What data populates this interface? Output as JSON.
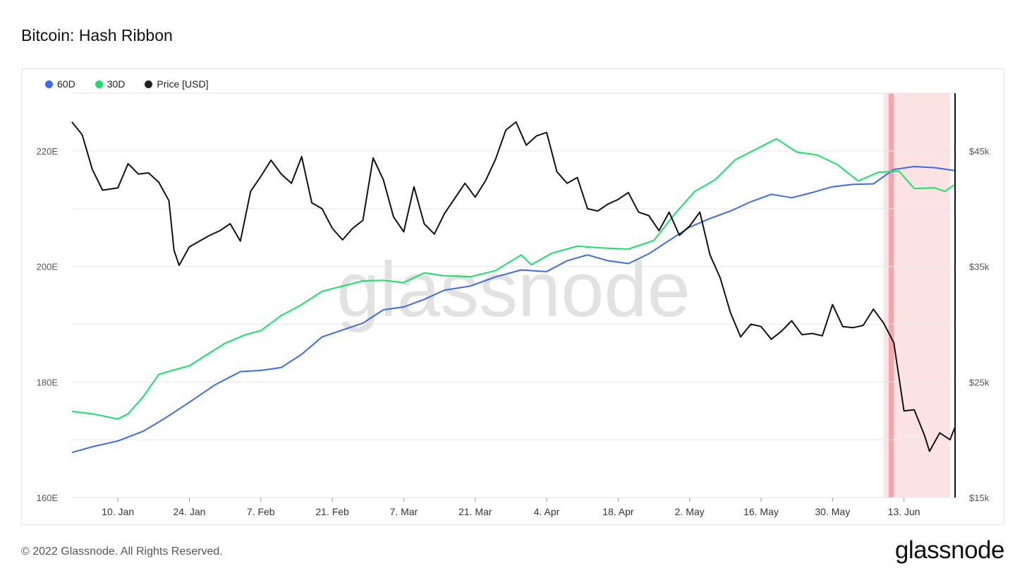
{
  "title": "Bitcoin: Hash Ribbon",
  "footer": {
    "copyright": "© 2022 Glassnode. All Rights Reserved.",
    "logo": "glassnode",
    "watermark": "glassnode"
  },
  "colors": {
    "series_60d": "#3d6ae8",
    "series_30d": "#18e06a",
    "price": "#111111",
    "band_light": "#fbe3e4",
    "band_dark": "#f4a7aa",
    "grid": "#e6e6e6"
  },
  "chart_data": {
    "type": "line",
    "title": "Bitcoin: Hash Ribbon",
    "x_start": "2022-01-01",
    "x_end": "2022-06-23",
    "x_ticks": [
      {
        "date": "2022-01-10",
        "label": "10. Jan"
      },
      {
        "date": "2022-01-24",
        "label": "24. Jan"
      },
      {
        "date": "2022-02-07",
        "label": "7. Feb"
      },
      {
        "date": "2022-02-21",
        "label": "21. Feb"
      },
      {
        "date": "2022-03-07",
        "label": "7. Mar"
      },
      {
        "date": "2022-03-21",
        "label": "21. Mar"
      },
      {
        "date": "2022-04-04",
        "label": "4. Apr"
      },
      {
        "date": "2022-04-18",
        "label": "18. Apr"
      },
      {
        "date": "2022-05-02",
        "label": "2. May"
      },
      {
        "date": "2022-05-16",
        "label": "16. May"
      },
      {
        "date": "2022-05-30",
        "label": "30. May"
      },
      {
        "date": "2022-06-13",
        "label": "13. Jun"
      }
    ],
    "y_left": {
      "min": 160,
      "max": 230,
      "ticks": [
        160,
        180,
        200,
        220
      ],
      "tick_labels": [
        "160E",
        "180E",
        "200E",
        "220E"
      ]
    },
    "y_right": {
      "min": 15000,
      "max": 50000,
      "ticks": [
        15000,
        25000,
        35000,
        45000
      ],
      "tick_labels": [
        "$15k",
        "$25k",
        "$35k",
        "$45k"
      ]
    },
    "grid": true,
    "legend_position": "top-left",
    "series": [
      {
        "name": "60D",
        "axis": "left",
        "points": [
          [
            "2022-01-01",
            167.8
          ],
          [
            "2022-01-05",
            168.8
          ],
          [
            "2022-01-10",
            169.8
          ],
          [
            "2022-01-15",
            171.5
          ],
          [
            "2022-01-19",
            173.6
          ],
          [
            "2022-01-24",
            176.5
          ],
          [
            "2022-01-29",
            179.5
          ],
          [
            "2022-02-03",
            181.8
          ],
          [
            "2022-02-07",
            182.0
          ],
          [
            "2022-02-11",
            182.5
          ],
          [
            "2022-02-15",
            184.8
          ],
          [
            "2022-02-19",
            187.8
          ],
          [
            "2022-02-23",
            189.0
          ],
          [
            "2022-02-27",
            190.2
          ],
          [
            "2022-03-03",
            192.5
          ],
          [
            "2022-03-07",
            193.0
          ],
          [
            "2022-03-11",
            194.3
          ],
          [
            "2022-03-15",
            195.9
          ],
          [
            "2022-03-20",
            196.6
          ],
          [
            "2022-03-25",
            198.2
          ],
          [
            "2022-03-30",
            199.4
          ],
          [
            "2022-04-04",
            199.1
          ],
          [
            "2022-04-08",
            201.0
          ],
          [
            "2022-04-12",
            202.0
          ],
          [
            "2022-04-16",
            201.0
          ],
          [
            "2022-04-20",
            200.5
          ],
          [
            "2022-04-24",
            202.2
          ],
          [
            "2022-04-28",
            204.5
          ],
          [
            "2022-05-02",
            206.8
          ],
          [
            "2022-05-06",
            208.3
          ],
          [
            "2022-05-10",
            209.6
          ],
          [
            "2022-05-14",
            211.2
          ],
          [
            "2022-05-18",
            212.5
          ],
          [
            "2022-05-22",
            211.9
          ],
          [
            "2022-05-26",
            212.8
          ],
          [
            "2022-05-30",
            213.8
          ],
          [
            "2022-06-03",
            214.2
          ],
          [
            "2022-06-07",
            214.3
          ],
          [
            "2022-06-11",
            216.8
          ],
          [
            "2022-06-15",
            217.3
          ],
          [
            "2022-06-19",
            217.1
          ],
          [
            "2022-06-23",
            216.6
          ]
        ]
      },
      {
        "name": "30D",
        "axis": "left",
        "points": [
          [
            "2022-01-01",
            174.9
          ],
          [
            "2022-01-05",
            174.5
          ],
          [
            "2022-01-10",
            173.6
          ],
          [
            "2022-01-12",
            174.5
          ],
          [
            "2022-01-15",
            177.5
          ],
          [
            "2022-01-18",
            181.3
          ],
          [
            "2022-01-21",
            182.1
          ],
          [
            "2022-01-24",
            182.8
          ],
          [
            "2022-01-27",
            184.5
          ],
          [
            "2022-01-31",
            186.7
          ],
          [
            "2022-02-04",
            188.2
          ],
          [
            "2022-02-07",
            188.9
          ],
          [
            "2022-02-11",
            191.5
          ],
          [
            "2022-02-15",
            193.4
          ],
          [
            "2022-02-19",
            195.7
          ],
          [
            "2022-02-23",
            196.6
          ],
          [
            "2022-02-27",
            197.5
          ],
          [
            "2022-03-03",
            197.6
          ],
          [
            "2022-03-07",
            197.2
          ],
          [
            "2022-03-11",
            198.9
          ],
          [
            "2022-03-15",
            198.4
          ],
          [
            "2022-03-20",
            198.2
          ],
          [
            "2022-03-25",
            199.3
          ],
          [
            "2022-03-30",
            202.0
          ],
          [
            "2022-04-01",
            200.3
          ],
          [
            "2022-04-05",
            202.3
          ],
          [
            "2022-04-10",
            203.5
          ],
          [
            "2022-04-15",
            203.2
          ],
          [
            "2022-04-20",
            203.0
          ],
          [
            "2022-04-25",
            204.5
          ],
          [
            "2022-04-29",
            209.0
          ],
          [
            "2022-05-03",
            213.0
          ],
          [
            "2022-05-07",
            215.0
          ],
          [
            "2022-05-11",
            218.5
          ],
          [
            "2022-05-15",
            220.3
          ],
          [
            "2022-05-19",
            222.1
          ],
          [
            "2022-05-23",
            219.8
          ],
          [
            "2022-05-27",
            219.3
          ],
          [
            "2022-05-31",
            217.6
          ],
          [
            "2022-06-04",
            214.8
          ],
          [
            "2022-06-08",
            216.3
          ],
          [
            "2022-06-12",
            216.5
          ],
          [
            "2022-06-15",
            213.5
          ],
          [
            "2022-06-19",
            213.6
          ],
          [
            "2022-06-21",
            213.0
          ],
          [
            "2022-06-23",
            214.2
          ]
        ]
      },
      {
        "name": "Price [USD]",
        "axis": "right",
        "points": [
          [
            "2022-01-01",
            47500
          ],
          [
            "2022-01-03",
            46400
          ],
          [
            "2022-01-05",
            43400
          ],
          [
            "2022-01-07",
            41600
          ],
          [
            "2022-01-10",
            41800
          ],
          [
            "2022-01-12",
            43900
          ],
          [
            "2022-01-14",
            43000
          ],
          [
            "2022-01-16",
            43100
          ],
          [
            "2022-01-18",
            42300
          ],
          [
            "2022-01-20",
            40700
          ],
          [
            "2022-01-21",
            36400
          ],
          [
            "2022-01-22",
            35100
          ],
          [
            "2022-01-24",
            36700
          ],
          [
            "2022-01-26",
            37200
          ],
          [
            "2022-01-28",
            37700
          ],
          [
            "2022-01-30",
            38100
          ],
          [
            "2022-02-01",
            38700
          ],
          [
            "2022-02-03",
            37200
          ],
          [
            "2022-02-05",
            41500
          ],
          [
            "2022-02-07",
            42800
          ],
          [
            "2022-02-09",
            44200
          ],
          [
            "2022-02-11",
            43000
          ],
          [
            "2022-02-13",
            42200
          ],
          [
            "2022-02-15",
            44500
          ],
          [
            "2022-02-17",
            40500
          ],
          [
            "2022-02-19",
            40000
          ],
          [
            "2022-02-21",
            38300
          ],
          [
            "2022-02-23",
            37300
          ],
          [
            "2022-02-25",
            38300
          ],
          [
            "2022-02-27",
            39000
          ],
          [
            "2022-03-01",
            44400
          ],
          [
            "2022-03-03",
            42500
          ],
          [
            "2022-03-05",
            39300
          ],
          [
            "2022-03-07",
            38000
          ],
          [
            "2022-03-09",
            41900
          ],
          [
            "2022-03-11",
            38700
          ],
          [
            "2022-03-13",
            37800
          ],
          [
            "2022-03-15",
            39600
          ],
          [
            "2022-03-17",
            40900
          ],
          [
            "2022-03-19",
            42200
          ],
          [
            "2022-03-21",
            41000
          ],
          [
            "2022-03-23",
            42400
          ],
          [
            "2022-03-25",
            44300
          ],
          [
            "2022-03-27",
            46800
          ],
          [
            "2022-03-29",
            47500
          ],
          [
            "2022-03-31",
            45500
          ],
          [
            "2022-04-02",
            46300
          ],
          [
            "2022-04-04",
            46600
          ],
          [
            "2022-04-06",
            43200
          ],
          [
            "2022-04-08",
            42200
          ],
          [
            "2022-04-10",
            42700
          ],
          [
            "2022-04-12",
            40000
          ],
          [
            "2022-04-14",
            39800
          ],
          [
            "2022-04-16",
            40400
          ],
          [
            "2022-04-18",
            40800
          ],
          [
            "2022-04-20",
            41400
          ],
          [
            "2022-04-22",
            39700
          ],
          [
            "2022-04-24",
            39400
          ],
          [
            "2022-04-26",
            38100
          ],
          [
            "2022-04-28",
            39700
          ],
          [
            "2022-04-30",
            37700
          ],
          [
            "2022-05-02",
            38500
          ],
          [
            "2022-05-04",
            39700
          ],
          [
            "2022-05-06",
            36000
          ],
          [
            "2022-05-08",
            34000
          ],
          [
            "2022-05-10",
            31000
          ],
          [
            "2022-05-12",
            28900
          ],
          [
            "2022-05-14",
            30000
          ],
          [
            "2022-05-16",
            29800
          ],
          [
            "2022-05-18",
            28700
          ],
          [
            "2022-05-20",
            29400
          ],
          [
            "2022-05-22",
            30300
          ],
          [
            "2022-05-24",
            29100
          ],
          [
            "2022-05-26",
            29200
          ],
          [
            "2022-05-28",
            29000
          ],
          [
            "2022-05-30",
            31700
          ],
          [
            "2022-06-01",
            29800
          ],
          [
            "2022-06-03",
            29700
          ],
          [
            "2022-06-05",
            29900
          ],
          [
            "2022-06-07",
            31300
          ],
          [
            "2022-06-09",
            30100
          ],
          [
            "2022-06-11",
            28400
          ],
          [
            "2022-06-13",
            22500
          ],
          [
            "2022-06-15",
            22600
          ],
          [
            "2022-06-17",
            20400
          ],
          [
            "2022-06-18",
            19000
          ],
          [
            "2022-06-20",
            20600
          ],
          [
            "2022-06-22",
            20000
          ],
          [
            "2022-06-23",
            21100
          ]
        ]
      }
    ],
    "highlight_band": {
      "from": "2022-06-09",
      "to": "2022-06-22",
      "emphasis_from": "2022-06-10",
      "emphasis_to": "2022-06-11"
    }
  }
}
